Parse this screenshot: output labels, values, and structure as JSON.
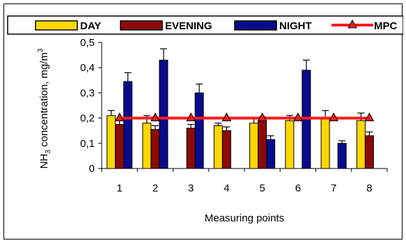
{
  "chart_data": {
    "type": "bar",
    "categories": [
      "1",
      "2",
      "3",
      "4",
      "5",
      "6",
      "7",
      "8"
    ],
    "series": [
      {
        "name": "DAY",
        "color": "#FFD700",
        "values": [
          0.21,
          0.18,
          0.0,
          0.17,
          0.18,
          0.19,
          0.2,
          0.19
        ],
        "errors": [
          0.02,
          0.03,
          0.0,
          0.01,
          0.02,
          0.02,
          0.03,
          0.03
        ]
      },
      {
        "name": "EVENING",
        "color": "#8B0A0A",
        "values": [
          0.175,
          0.155,
          0.16,
          0.15,
          0.19,
          0.0,
          0.0,
          0.13
        ],
        "errors": [
          0.015,
          0.015,
          0.015,
          0.015,
          0.015,
          0.0,
          0.0,
          0.015
        ]
      },
      {
        "name": "NIGHT",
        "color": "#0A0A8C",
        "values": [
          0.345,
          0.43,
          0.3,
          0.0,
          0.115,
          0.39,
          0.1,
          0.0
        ],
        "errors": [
          0.035,
          0.045,
          0.035,
          0.0,
          0.015,
          0.04,
          0.01,
          0.0
        ]
      }
    ],
    "reference_line": {
      "name": "MPC",
      "value": 0.2,
      "color": "#FF1A1A",
      "marker_color": "#E8201A"
    },
    "xlabel": "Measuring points",
    "ylabel": {
      "prefix": "NH",
      "sub": "3",
      "middle": " concentration, mg/m",
      "sup": "3"
    },
    "ylim": [
      0,
      0.5
    ],
    "yticks": [
      "0",
      "0,1",
      "0,2",
      "0,3",
      "0,4",
      "0,5"
    ],
    "grid": false,
    "legend_position": "top"
  }
}
